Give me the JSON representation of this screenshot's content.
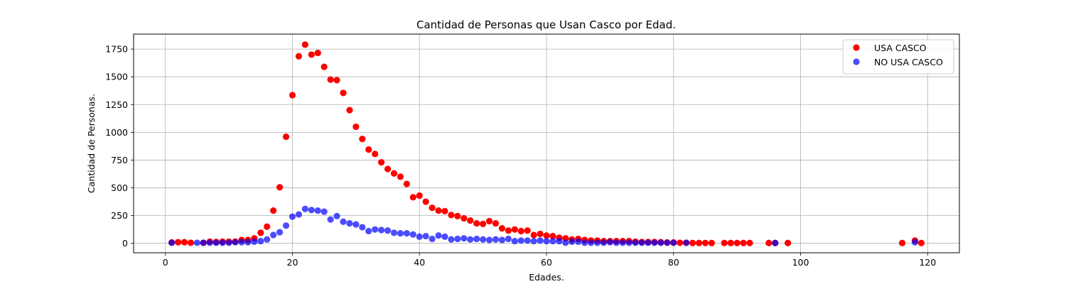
{
  "chart_data": {
    "type": "scatter",
    "title": "Cantidad de Personas que Usan Casco por Edad.",
    "xlabel": "Edades.",
    "ylabel": "Cantidad de Personas.",
    "xlim": [
      -5,
      125
    ],
    "ylim": [
      -85,
      1885
    ],
    "xticks": [
      0,
      20,
      40,
      60,
      80,
      100,
      120
    ],
    "yticks": [
      0,
      250,
      500,
      750,
      1000,
      1250,
      1500,
      1750
    ],
    "grid": true,
    "legend_position": "top-right",
    "series": [
      {
        "name": "USA CASCO",
        "color": "#ff0000",
        "x": [
          1,
          2,
          3,
          4,
          6,
          7,
          8,
          9,
          10,
          11,
          12,
          13,
          14,
          15,
          16,
          17,
          18,
          19,
          20,
          21,
          22,
          23,
          24,
          25,
          26,
          27,
          28,
          29,
          30,
          31,
          32,
          33,
          34,
          35,
          36,
          37,
          38,
          39,
          40,
          41,
          42,
          43,
          44,
          45,
          46,
          47,
          48,
          49,
          50,
          51,
          52,
          53,
          54,
          55,
          56,
          57,
          58,
          59,
          60,
          61,
          62,
          63,
          64,
          65,
          66,
          67,
          68,
          69,
          70,
          71,
          72,
          73,
          74,
          75,
          76,
          77,
          78,
          79,
          80,
          81,
          82,
          83,
          84,
          85,
          86,
          88,
          89,
          90,
          91,
          92,
          95,
          96,
          98,
          116,
          118,
          119
        ],
        "y": [
          8,
          10,
          10,
          5,
          5,
          15,
          12,
          15,
          15,
          15,
          30,
          30,
          45,
          95,
          150,
          295,
          505,
          960,
          1335,
          1685,
          1790,
          1700,
          1715,
          1590,
          1475,
          1470,
          1355,
          1200,
          1050,
          940,
          845,
          805,
          730,
          670,
          630,
          600,
          535,
          415,
          430,
          375,
          320,
          295,
          290,
          255,
          245,
          225,
          205,
          180,
          175,
          200,
          180,
          135,
          115,
          125,
          110,
          115,
          75,
          85,
          70,
          65,
          50,
          45,
          35,
          40,
          30,
          25,
          25,
          20,
          20,
          20,
          20,
          20,
          15,
          12,
          12,
          12,
          10,
          8,
          8,
          5,
          5,
          3,
          3,
          3,
          3,
          3,
          3,
          3,
          3,
          3,
          3,
          3,
          3,
          3,
          25,
          3
        ]
      },
      {
        "name": "NO USA CASCO",
        "color": "#0000ff",
        "x": [
          1,
          5,
          6,
          7,
          8,
          9,
          10,
          11,
          12,
          13,
          14,
          15,
          16,
          17,
          18,
          19,
          20,
          21,
          22,
          23,
          24,
          25,
          26,
          27,
          28,
          29,
          30,
          31,
          32,
          33,
          34,
          35,
          36,
          37,
          38,
          39,
          40,
          41,
          42,
          43,
          44,
          45,
          46,
          47,
          48,
          49,
          50,
          51,
          52,
          53,
          54,
          55,
          56,
          57,
          58,
          59,
          60,
          61,
          62,
          63,
          64,
          65,
          66,
          67,
          68,
          69,
          70,
          71,
          72,
          73,
          74,
          75,
          76,
          77,
          78,
          79,
          80,
          82,
          96,
          118
        ],
        "y": [
          5,
          5,
          5,
          5,
          5,
          5,
          5,
          10,
          10,
          10,
          15,
          20,
          35,
          75,
          100,
          160,
          240,
          260,
          310,
          300,
          295,
          285,
          215,
          245,
          195,
          180,
          170,
          145,
          110,
          125,
          120,
          115,
          95,
          90,
          90,
          80,
          60,
          65,
          40,
          70,
          60,
          35,
          40,
          45,
          35,
          40,
          35,
          30,
          35,
          30,
          40,
          20,
          25,
          25,
          20,
          25,
          20,
          20,
          20,
          5,
          15,
          15,
          5,
          5,
          5,
          5,
          10,
          5,
          5,
          5,
          5,
          5,
          5,
          5,
          5,
          5,
          5,
          5,
          3,
          10
        ]
      }
    ]
  }
}
